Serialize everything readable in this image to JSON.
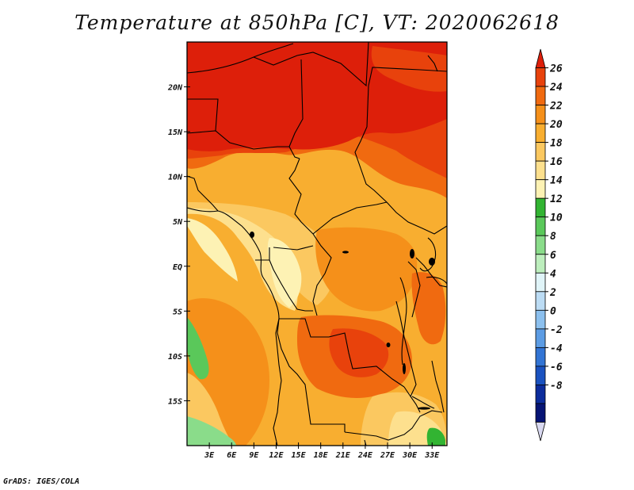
{
  "title": "Temperature at 850hPa [C], VT: 2020062618",
  "footer": "GrADS: IGES/COLA",
  "chart_data": {
    "type": "heatmap",
    "field": "Temperature at 850hPa",
    "units": "C",
    "valid_time": "2020062618",
    "lon_range": [
      0,
      35
    ],
    "lat_range": [
      -20,
      25
    ],
    "lon_ticks": [
      "3E",
      "6E",
      "9E",
      "12E",
      "15E",
      "18E",
      "21E",
      "24E",
      "27E",
      "30E",
      "33E"
    ],
    "lon_tick_values": [
      3,
      6,
      9,
      12,
      15,
      18,
      21,
      24,
      27,
      30,
      33
    ],
    "lat_ticks": [
      "20N",
      "15N",
      "10N",
      "5N",
      "EQ",
      "5S",
      "10S",
      "15S"
    ],
    "lat_tick_values": [
      20,
      15,
      10,
      5,
      0,
      -5,
      -10,
      -15
    ],
    "colorbar": {
      "labels": [
        "26",
        "24",
        "22",
        "20",
        "18",
        "16",
        "14",
        "12",
        "10",
        "8",
        "6",
        "4",
        "2",
        "0",
        "-2",
        "-4",
        "-6",
        "-8"
      ],
      "colors": [
        "#dd1f0a",
        "#e8420c",
        "#f06a10",
        "#f5901a",
        "#f8ae30",
        "#fbc860",
        "#fde08e",
        "#fdf2b4",
        "#32b432",
        "#5ac85a",
        "#8adc8a",
        "#bdeebd",
        "#e0f4f8",
        "#bcdcf4",
        "#8cc0ee",
        "#5c9ce4",
        "#3274d4",
        "#1a52c0",
        "#0c2c9c",
        "#061474",
        "#d8d8f0"
      ]
    }
  }
}
